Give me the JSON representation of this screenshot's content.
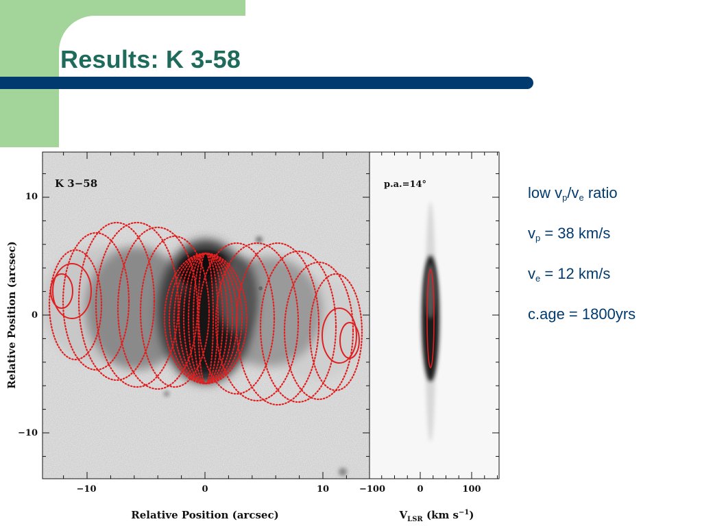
{
  "slide": {
    "title": "Results: K 3-58",
    "bullets": [
      {
        "parts": [
          {
            "t": "low v"
          },
          {
            "sub": "p"
          },
          {
            "t": "/v"
          },
          {
            "sub": "e"
          },
          {
            "t": " ratio"
          }
        ]
      },
      {
        "parts": [
          {
            "t": "v"
          },
          {
            "sub": "p"
          },
          {
            "t": " = 38 km/s"
          }
        ]
      },
      {
        "parts": [
          {
            "t": "v"
          },
          {
            "sub": "e"
          },
          {
            "t": " = 12 km/s"
          }
        ]
      },
      {
        "parts": [
          {
            "t": "c.age = 1800yrs"
          }
        ]
      }
    ]
  },
  "figure": {
    "left_panel": {
      "label": "K 3−58",
      "xlabel": "Relative Position (arcsec)",
      "ylabel": "Relative Position (arcsec)",
      "xticks": [
        "−10",
        "0",
        "10"
      ],
      "yticks": [
        "10",
        "0",
        "−10"
      ]
    },
    "right_panel": {
      "label": "p.a.=14°",
      "xticks": [
        "−100",
        "0",
        "100"
      ],
      "xlabel": "V_LSR (km s^-1)"
    },
    "colors": {
      "model": "#e02020",
      "title": "#1e6b5c",
      "bar": "#003a6e",
      "green": "#a3d49a"
    }
  }
}
